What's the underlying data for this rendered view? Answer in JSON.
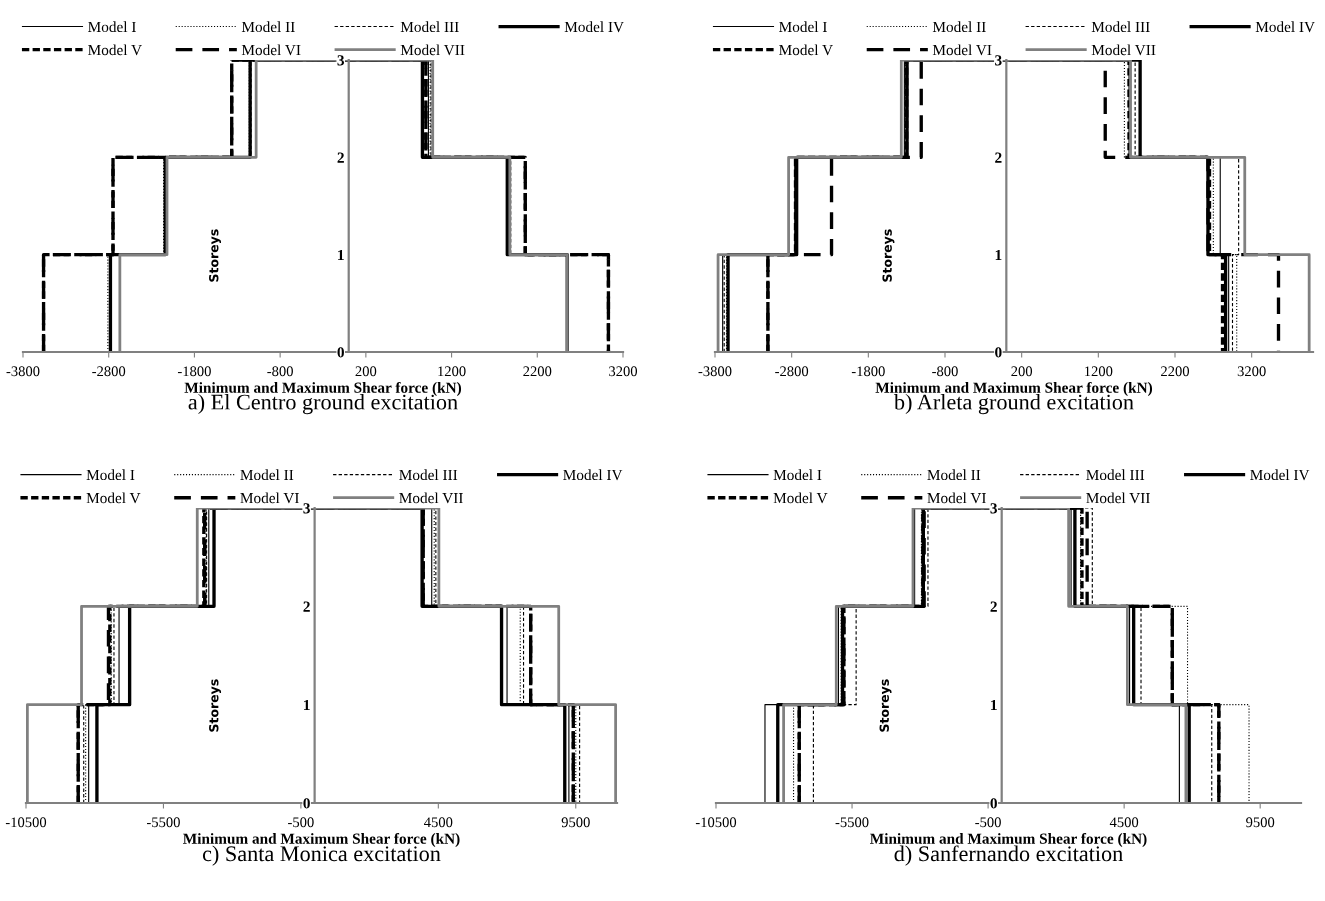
{
  "chart_data": [
    {
      "type": "line",
      "title": "a) El Centro ground excitation",
      "xlabel": "Minimum and Maximum Shear force (kN)",
      "ylabel": "Storeys",
      "xlim": [
        -3800,
        3200
      ],
      "xticks": [
        -3800,
        -2800,
        -1800,
        -800,
        200,
        1200,
        2200,
        3200
      ],
      "ylim": [
        0,
        3
      ],
      "yticks": [
        0,
        1,
        2,
        3
      ],
      "legend": "top",
      "grid": false,
      "series": [
        {
          "name": "Model I",
          "color": "#000000",
          "line_style": "solid",
          "x": [
            -2790,
            -2790,
            -2150,
            -2150,
            -1150,
            -1150,
            930,
            930,
            1870,
            1870,
            2550,
            2550
          ],
          "values": [
            0,
            1,
            1,
            2,
            2,
            3,
            3,
            2,
            2,
            1,
            1,
            0
          ]
        },
        {
          "name": "Model II",
          "color": "#000000",
          "line_style": "dotted",
          "x": [
            -2810,
            -2810,
            -2160,
            -2160,
            -1160,
            -1160,
            950,
            950,
            1880,
            1880,
            2550,
            2550
          ],
          "values": [
            0,
            1,
            1,
            2,
            2,
            3,
            3,
            2,
            2,
            1,
            1,
            0
          ]
        },
        {
          "name": "Model III",
          "color": "#000000",
          "line_style": "dashed",
          "x": [
            -2790,
            -2790,
            -2140,
            -2140,
            -1140,
            -1140,
            960,
            960,
            1890,
            1890,
            2550,
            2550
          ],
          "values": [
            0,
            1,
            1,
            2,
            2,
            3,
            3,
            2,
            2,
            1,
            1,
            0
          ]
        },
        {
          "name": "Model IV",
          "color": "#000000",
          "line_style": "solid",
          "x": [
            -2780,
            -2780,
            -2140,
            -2140,
            -1150,
            -1150,
            860,
            860,
            1850,
            1850,
            2550,
            2550
          ],
          "values": [
            0,
            1,
            1,
            2,
            2,
            3,
            3,
            2,
            2,
            1,
            1,
            0
          ]
        },
        {
          "name": "Model V",
          "color": "#000000",
          "line_style": "dashed",
          "x": [
            -3560,
            -3560,
            -2750,
            -2750,
            -1365,
            -1365,
            900,
            900,
            2060,
            2060,
            3030,
            3030
          ],
          "values": [
            0,
            1,
            1,
            2,
            2,
            3,
            3,
            2,
            2,
            1,
            1,
            0
          ]
        },
        {
          "name": "Model VI",
          "color": "#000000",
          "line_style": "dashed",
          "x": [
            -3560,
            -3560,
            -2750,
            -2750,
            -1365,
            -1365,
            900,
            900,
            2060,
            2060,
            3030,
            3030
          ],
          "values": [
            0,
            1,
            1,
            2,
            2,
            3,
            3,
            2,
            2,
            1,
            1,
            0
          ]
        },
        {
          "name": "Model VII",
          "color": "#808080",
          "line_style": "solid",
          "x": [
            -2670,
            -2670,
            -2120,
            -2120,
            -1080,
            -1080,
            980,
            980,
            1880,
            1880,
            2550,
            2550
          ],
          "values": [
            0,
            1,
            1,
            2,
            2,
            3,
            3,
            2,
            2,
            1,
            1,
            0
          ]
        }
      ]
    },
    {
      "type": "line",
      "title": "b) Arleta ground excitation",
      "xlabel": "Minimum and Maximum Shear force (kN)",
      "ylabel": "Storeys",
      "xlim": [
        -3800,
        4000
      ],
      "xticks": [
        -3800,
        -2800,
        -1800,
        -800,
        200,
        1200,
        2200,
        3200
      ],
      "ylim": [
        0,
        3
      ],
      "yticks": [
        0,
        1,
        2,
        3
      ],
      "legend": "top",
      "grid": false,
      "series": [
        {
          "name": "Model I",
          "color": "#000000",
          "line_style": "solid",
          "x": [
            -3700,
            -3700,
            -2760,
            -2760,
            -1330,
            -1330,
            1600,
            1600,
            2790,
            2790,
            2900,
            2900
          ],
          "values": [
            0,
            1,
            1,
            2,
            2,
            3,
            3,
            2,
            2,
            1,
            1,
            0
          ]
        },
        {
          "name": "Model II",
          "color": "#000000",
          "line_style": "dotted",
          "x": [
            -3650,
            -3650,
            -2750,
            -2750,
            -1310,
            -1310,
            1540,
            1540,
            2700,
            2700,
            3005,
            3005
          ],
          "values": [
            0,
            1,
            1,
            2,
            2,
            3,
            3,
            2,
            2,
            1,
            1,
            0
          ]
        },
        {
          "name": "Model III",
          "color": "#000000",
          "line_style": "dashed",
          "x": [
            -3680,
            -3680,
            -2740,
            -2740,
            -1320,
            -1320,
            1680,
            1680,
            3030,
            3030,
            2950,
            2950
          ],
          "values": [
            0,
            1,
            1,
            2,
            2,
            3,
            3,
            2,
            2,
            1,
            1,
            0
          ]
        },
        {
          "name": "Model IV",
          "color": "#000000",
          "line_style": "solid",
          "x": [
            -3630,
            -3630,
            -2735,
            -2735,
            -1295,
            -1295,
            1745,
            1745,
            2630,
            2630,
            2860,
            2860
          ],
          "values": [
            0,
            1,
            1,
            2,
            2,
            3,
            3,
            2,
            2,
            1,
            1,
            0
          ]
        },
        {
          "name": "Model V",
          "color": "#000000",
          "line_style": "dashed",
          "x": [
            -3110,
            -3110,
            -2750,
            -2750,
            -1300,
            -1300,
            1600,
            1600,
            2650,
            2650,
            2820,
            2820
          ],
          "values": [
            0,
            1,
            1,
            2,
            2,
            3,
            3,
            2,
            2,
            1,
            1,
            0
          ]
        },
        {
          "name": "Model VI",
          "color": "#000000",
          "line_style": "dashed",
          "x": [
            -3110,
            -3110,
            -2280,
            -2280,
            -1110,
            -1110,
            1290,
            1290,
            2630,
            2630,
            3550,
            3550
          ],
          "values": [
            0,
            1,
            1,
            2,
            2,
            3,
            3,
            2,
            2,
            1,
            1,
            0
          ]
        },
        {
          "name": "Model VII",
          "color": "#808080",
          "line_style": "solid",
          "x": [
            -3760,
            -3760,
            -2840,
            -2840,
            -1370,
            -1370,
            1620,
            1620,
            3110,
            3110,
            3950,
            3950
          ],
          "values": [
            0,
            1,
            1,
            2,
            2,
            3,
            3,
            2,
            2,
            1,
            1,
            0
          ]
        }
      ]
    },
    {
      "type": "line",
      "title": "c) Santa Monica excitation",
      "xlabel": "Minimum and Maximum Shear force (kN)",
      "ylabel": "Storeys",
      "xlim": [
        -10500,
        11000
      ],
      "xticks": [
        -10500,
        -5500,
        -500,
        4500,
        9500
      ],
      "ylim": [
        0,
        3
      ],
      "yticks": [
        0,
        1,
        2,
        3
      ],
      "legend": "top",
      "grid": false,
      "series": [
        {
          "name": "Model I",
          "color": "#000000",
          "line_style": "solid",
          "x": [
            -8220,
            -8220,
            -7115,
            -7115,
            -3850,
            -3850,
            4260,
            4260,
            7000,
            7000,
            9250,
            9250
          ],
          "values": [
            0,
            1,
            1,
            2,
            2,
            3,
            3,
            2,
            2,
            1,
            1,
            0
          ]
        },
        {
          "name": "Model II",
          "color": "#000000",
          "line_style": "dotted",
          "x": [
            -8330,
            -8330,
            -7400,
            -7400,
            -3950,
            -3950,
            4350,
            4350,
            7480,
            7480,
            9500,
            9500
          ],
          "values": [
            0,
            1,
            1,
            2,
            2,
            3,
            3,
            2,
            2,
            1,
            1,
            0
          ]
        },
        {
          "name": "Model III",
          "color": "#000000",
          "line_style": "dashed",
          "x": [
            -8400,
            -8400,
            -7300,
            -7300,
            -3930,
            -3930,
            4410,
            4410,
            7600,
            7600,
            9640,
            9640
          ],
          "values": [
            0,
            1,
            1,
            2,
            2,
            3,
            3,
            2,
            2,
            1,
            1,
            0
          ]
        },
        {
          "name": "Model IV",
          "color": "#000000",
          "line_style": "solid",
          "x": [
            -7920,
            -7920,
            -6730,
            -6730,
            -3660,
            -3660,
            3910,
            3910,
            6800,
            6800,
            9100,
            9100
          ],
          "values": [
            0,
            1,
            1,
            2,
            2,
            3,
            3,
            2,
            2,
            1,
            1,
            0
          ]
        },
        {
          "name": "Model V",
          "color": "#000000",
          "line_style": "dashed",
          "x": [
            -8600,
            -8600,
            -7450,
            -7450,
            -4030,
            -4030,
            3950,
            3950,
            7860,
            7860,
            9410,
            9410
          ],
          "values": [
            0,
            1,
            1,
            2,
            2,
            3,
            3,
            2,
            2,
            1,
            1,
            0
          ]
        },
        {
          "name": "Model VI",
          "color": "#000000",
          "line_style": "dashed",
          "x": [
            -8600,
            -8600,
            -7500,
            -7500,
            -4000,
            -4000,
            3950,
            3950,
            7860,
            7860,
            9410,
            9410
          ],
          "values": [
            0,
            1,
            1,
            2,
            2,
            3,
            3,
            2,
            2,
            1,
            1,
            0
          ]
        },
        {
          "name": "Model VII",
          "color": "#808080",
          "line_style": "solid",
          "x": [
            -10450,
            -10450,
            -8480,
            -8480,
            -4270,
            -4270,
            4520,
            4520,
            8880,
            8880,
            10950,
            10950
          ],
          "values": [
            0,
            1,
            1,
            2,
            2,
            3,
            3,
            2,
            2,
            1,
            1,
            0
          ]
        }
      ]
    },
    {
      "type": "line",
      "title": "d) Sanfernando excitation",
      "xlabel": "Minimum and Maximum Shear force (kN)",
      "ylabel": "Storeys",
      "xlim": [
        -10500,
        11000
      ],
      "xticks": [
        -10500,
        -5500,
        -500,
        4500,
        9500
      ],
      "ylim": [
        0,
        3
      ],
      "yticks": [
        0,
        1,
        2,
        3
      ],
      "legend": "top",
      "grid": false,
      "series": [
        {
          "name": "Model I",
          "color": "#000000",
          "line_style": "solid",
          "x": [
            -8700,
            -8700,
            -6000,
            -6000,
            -3200,
            -3200,
            2550,
            2550,
            4700,
            4700,
            6530,
            6530
          ],
          "values": [
            0,
            1,
            1,
            2,
            2,
            3,
            3,
            2,
            2,
            1,
            1,
            0
          ]
        },
        {
          "name": "Model II",
          "color": "#000000",
          "line_style": "dotted",
          "x": [
            -7650,
            -7650,
            -5900,
            -5900,
            -2950,
            -2950,
            2900,
            2900,
            6830,
            6830,
            9090,
            9090
          ],
          "values": [
            0,
            1,
            1,
            2,
            2,
            3,
            3,
            2,
            2,
            1,
            1,
            0
          ]
        },
        {
          "name": "Model III",
          "color": "#000000",
          "line_style": "dashed",
          "x": [
            -6920,
            -6920,
            -5350,
            -5350,
            -2710,
            -2710,
            3330,
            3330,
            5120,
            5120,
            7720,
            7720
          ],
          "values": [
            0,
            1,
            1,
            2,
            2,
            3,
            3,
            2,
            2,
            1,
            1,
            0
          ]
        },
        {
          "name": "Model IV",
          "color": "#000000",
          "line_style": "solid",
          "x": [
            -8230,
            -8230,
            -5850,
            -5850,
            -2880,
            -2880,
            2690,
            2690,
            4850,
            4850,
            6890,
            6890
          ],
          "values": [
            0,
            1,
            1,
            2,
            2,
            3,
            3,
            2,
            2,
            1,
            1,
            0
          ]
        },
        {
          "name": "Model V",
          "color": "#000000",
          "line_style": "dashed",
          "x": [
            -7440,
            -7440,
            -5800,
            -5800,
            -2900,
            -2900,
            2950,
            2950,
            6270,
            6270,
            7980,
            7980
          ],
          "values": [
            0,
            1,
            1,
            2,
            2,
            3,
            3,
            2,
            2,
            1,
            1,
            0
          ]
        },
        {
          "name": "Model VI",
          "color": "#000000",
          "line_style": "dashed",
          "x": [
            -7440,
            -7440,
            -5800,
            -5800,
            -2850,
            -2850,
            3140,
            3140,
            6270,
            6270,
            7980,
            7980
          ],
          "values": [
            0,
            1,
            1,
            2,
            2,
            3,
            3,
            2,
            2,
            1,
            1,
            0
          ]
        },
        {
          "name": "Model VII",
          "color": "#808080",
          "line_style": "solid",
          "x": [
            -8015,
            -8015,
            -6080,
            -6080,
            -3260,
            -3260,
            2460,
            2460,
            4620,
            4620,
            6770,
            6770
          ],
          "values": [
            0,
            1,
            1,
            2,
            2,
            3,
            3,
            2,
            2,
            1,
            1,
            0
          ]
        }
      ]
    }
  ]
}
